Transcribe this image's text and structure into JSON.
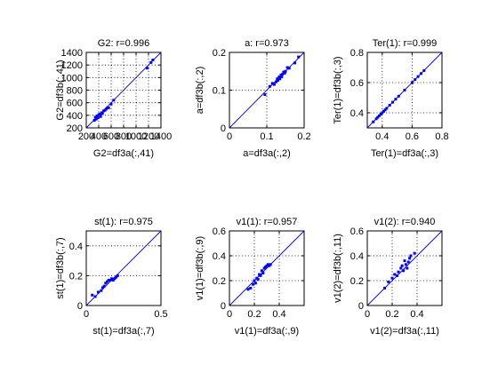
{
  "figure": {
    "background": "#ffffff",
    "marker_color": "#0000ff",
    "line_color": "#0000ff",
    "grid_color": "#000000"
  },
  "chart_data": [
    {
      "type": "scatter",
      "title": "G2: r=0.996",
      "xlabel": "G2=df3a(:,41)",
      "ylabel": "G2=df3b(:,41)",
      "xlim": [
        200,
        1400
      ],
      "ylim": [
        200,
        1400
      ],
      "xticks": [
        200,
        400,
        600,
        800,
        1000,
        1200,
        1400
      ],
      "xtick_labels": [
        "200",
        "400",
        "600",
        "800",
        "1000",
        "1200",
        "1400"
      ],
      "yticks": [
        200,
        400,
        600,
        800,
        1000,
        1200,
        1400
      ],
      "ytick_labels": [
        "200",
        "400",
        "600",
        "800",
        "1000",
        "1200",
        "1400"
      ],
      "grid": true,
      "reference_line": "y=x",
      "x": [
        330,
        345,
        360,
        375,
        390,
        400,
        420,
        430,
        445,
        460,
        480,
        500,
        520,
        540,
        560,
        600,
        640,
        1180,
        1240,
        1270
      ],
      "y": [
        320,
        370,
        340,
        390,
        360,
        410,
        420,
        380,
        440,
        430,
        470,
        480,
        500,
        520,
        520,
        580,
        640,
        1150,
        1240,
        1280
      ]
    },
    {
      "type": "scatter",
      "title": "a: r=0.973",
      "xlabel": "a=df3a(:,2)",
      "ylabel": "a=df3b(:,2)",
      "xlim": [
        0,
        0.2
      ],
      "ylim": [
        0,
        0.2
      ],
      "xticks": [
        0,
        0.1,
        0.2
      ],
      "xtick_labels": [
        "0",
        "0.1",
        "0.2"
      ],
      "yticks": [
        0,
        0.1,
        0.2
      ],
      "ytick_labels": [
        "0",
        "0.1",
        "0.2"
      ],
      "grid": true,
      "reference_line": "y=x",
      "x": [
        0.095,
        0.108,
        0.115,
        0.12,
        0.125,
        0.128,
        0.13,
        0.133,
        0.135,
        0.138,
        0.14,
        0.142,
        0.145,
        0.148,
        0.15,
        0.155,
        0.16,
        0.175,
        0.185
      ],
      "y": [
        0.088,
        0.11,
        0.118,
        0.115,
        0.122,
        0.13,
        0.126,
        0.135,
        0.13,
        0.14,
        0.135,
        0.142,
        0.148,
        0.145,
        0.15,
        0.16,
        0.158,
        0.172,
        0.188
      ]
    },
    {
      "type": "scatter",
      "title": "Ter(1): r=0.999",
      "xlabel": "Ter(1)=df3a(:,3)",
      "ylabel": "Ter(1)=df3b(:,3)",
      "xlim": [
        0.3,
        0.8
      ],
      "ylim": [
        0.3,
        0.8
      ],
      "xticks": [
        0.4,
        0.6,
        0.8
      ],
      "xtick_labels": [
        "0.4",
        "0.6",
        "0.8"
      ],
      "yticks": [
        0.4,
        0.6,
        0.8
      ],
      "ytick_labels": [
        "0.4",
        "0.6",
        "0.8"
      ],
      "grid": true,
      "reference_line": "y=x",
      "x": [
        0.34,
        0.36,
        0.37,
        0.38,
        0.39,
        0.4,
        0.41,
        0.42,
        0.43,
        0.45,
        0.47,
        0.49,
        0.51,
        0.55,
        0.6,
        0.62,
        0.64,
        0.66,
        0.68
      ],
      "y": [
        0.34,
        0.36,
        0.37,
        0.38,
        0.39,
        0.4,
        0.41,
        0.42,
        0.43,
        0.45,
        0.47,
        0.49,
        0.51,
        0.55,
        0.6,
        0.62,
        0.64,
        0.66,
        0.68
      ]
    },
    {
      "type": "scatter",
      "title": "st(1): r=0.975",
      "xlabel": "st(1)=df3a(:,7)",
      "ylabel": "st(1)=df3b(:,7)",
      "xlim": [
        0,
        0.5
      ],
      "ylim": [
        0,
        0.5
      ],
      "xticks": [
        0,
        0.5
      ],
      "xtick_labels": [
        "0",
        "0.5"
      ],
      "yticks": [
        0,
        0.2,
        0.4
      ],
      "ytick_labels": [
        "0",
        "0.2",
        "0.4"
      ],
      "grid": true,
      "reference_line": "y=x",
      "x": [
        0.04,
        0.06,
        0.08,
        0.1,
        0.11,
        0.12,
        0.13,
        0.14,
        0.15,
        0.16,
        0.17,
        0.18,
        0.19,
        0.2,
        0.21
      ],
      "y": [
        0.07,
        0.06,
        0.09,
        0.1,
        0.12,
        0.13,
        0.15,
        0.16,
        0.17,
        0.17,
        0.18,
        0.17,
        0.18,
        0.19,
        0.2
      ]
    },
    {
      "type": "scatter",
      "title": "v1(1): r=0.957",
      "xlabel": "v1(1)=df3a(:,9)",
      "ylabel": "v1(1)=df3b(:,9)",
      "xlim": [
        0,
        0.6
      ],
      "ylim": [
        0,
        0.6
      ],
      "xticks": [
        0,
        0.2,
        0.4
      ],
      "xtick_labels": [
        "0",
        "0.2",
        "0.4"
      ],
      "yticks": [
        0,
        0.2,
        0.4,
        0.6
      ],
      "ytick_labels": [
        "0",
        "0.2",
        "0.4",
        "0.6"
      ],
      "grid": true,
      "reference_line": "y=x",
      "x": [
        0.15,
        0.17,
        0.19,
        0.2,
        0.21,
        0.22,
        0.23,
        0.24,
        0.25,
        0.26,
        0.27,
        0.28,
        0.29,
        0.3,
        0.31,
        0.32,
        0.33
      ],
      "y": [
        0.13,
        0.14,
        0.17,
        0.2,
        0.18,
        0.22,
        0.21,
        0.25,
        0.24,
        0.28,
        0.26,
        0.3,
        0.31,
        0.32,
        0.33,
        0.32,
        0.33
      ]
    },
    {
      "type": "scatter",
      "title": "v1(2): r=0.940",
      "xlabel": "v1(2)=df3a(:,11)",
      "ylabel": "v1(2)=df3b(:,11)",
      "xlim": [
        0,
        0.6
      ],
      "ylim": [
        0,
        0.6
      ],
      "xticks": [
        0,
        0.2,
        0.4
      ],
      "xtick_labels": [
        "0",
        "0.2",
        "0.4"
      ],
      "yticks": [
        0,
        0.2,
        0.4,
        0.6
      ],
      "ytick_labels": [
        "0",
        "0.2",
        "0.4",
        "0.6"
      ],
      "grid": true,
      "reference_line": "y=x",
      "x": [
        0.14,
        0.17,
        0.2,
        0.22,
        0.24,
        0.25,
        0.27,
        0.28,
        0.29,
        0.3,
        0.31,
        0.32,
        0.33,
        0.34,
        0.35,
        0.38
      ],
      "y": [
        0.14,
        0.19,
        0.22,
        0.25,
        0.24,
        0.27,
        0.3,
        0.32,
        0.28,
        0.36,
        0.33,
        0.3,
        0.35,
        0.38,
        0.4,
        0.42
      ]
    }
  ]
}
